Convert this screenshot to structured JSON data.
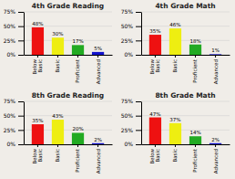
{
  "chart_data": [
    {
      "type": "bar",
      "title": "4th Grade Reading",
      "categories": [
        "Below\nBasic",
        "Basic",
        "Proficient",
        "Advanced"
      ],
      "values": [
        48,
        30,
        17,
        5
      ],
      "value_labels": [
        "48%",
        "30%",
        "17%",
        "5%"
      ],
      "colors": [
        "#ee1111",
        "#eeee11",
        "#22aa22",
        "#1111cc"
      ],
      "ylim": [
        0,
        75
      ],
      "yticks": [
        {
          "value": 0,
          "label": "0%"
        },
        {
          "value": 25,
          "label": "25%"
        },
        {
          "value": 50,
          "label": "50%"
        },
        {
          "value": 75,
          "label": "75%"
        }
      ],
      "grid": true,
      "data_labels": true
    },
    {
      "type": "bar",
      "title": "4th Grade Math",
      "categories": [
        "Below\nBasic",
        "Basic",
        "Proficient",
        "Advanced"
      ],
      "values": [
        35,
        46,
        18,
        1
      ],
      "value_labels": [
        "35%",
        "46%",
        "18%",
        "1%"
      ],
      "colors": [
        "#ee1111",
        "#eeee11",
        "#22aa22",
        "#1111cc"
      ],
      "ylim": [
        0,
        75
      ],
      "yticks": [
        {
          "value": 0,
          "label": "0%"
        },
        {
          "value": 25,
          "label": "25%"
        },
        {
          "value": 50,
          "label": "50%"
        },
        {
          "value": 75,
          "label": "75%"
        }
      ],
      "grid": true,
      "data_labels": true
    },
    {
      "type": "bar",
      "title": "8th Grade Reading",
      "categories": [
        "Below\nBasic",
        "Basic",
        "Proficient",
        "Advanced"
      ],
      "values": [
        35,
        43,
        20,
        2
      ],
      "value_labels": [
        "35%",
        "43%",
        "20%",
        "2%"
      ],
      "colors": [
        "#ee1111",
        "#eeee11",
        "#22aa22",
        "#1111cc"
      ],
      "ylim": [
        0,
        75
      ],
      "yticks": [
        {
          "value": 0,
          "label": "0%"
        },
        {
          "value": 25,
          "label": "25%"
        },
        {
          "value": 50,
          "label": "50%"
        },
        {
          "value": 75,
          "label": "75%"
        }
      ],
      "grid": true,
      "data_labels": true
    },
    {
      "type": "bar",
      "title": "8th Grade Math",
      "categories": [
        "Below\nBasic",
        "Basic",
        "Proficient",
        "Advanced"
      ],
      "values": [
        47,
        37,
        14,
        2
      ],
      "value_labels": [
        "47%",
        "37%",
        "14%",
        "2%"
      ],
      "colors": [
        "#ee1111",
        "#eeee11",
        "#22aa22",
        "#1111cc"
      ],
      "ylim": [
        0,
        75
      ],
      "yticks": [
        {
          "value": 0,
          "label": "0%"
        },
        {
          "value": 25,
          "label": "25%"
        },
        {
          "value": 50,
          "label": "50%"
        },
        {
          "value": 75,
          "label": "75%"
        }
      ],
      "grid": true,
      "data_labels": true
    }
  ]
}
